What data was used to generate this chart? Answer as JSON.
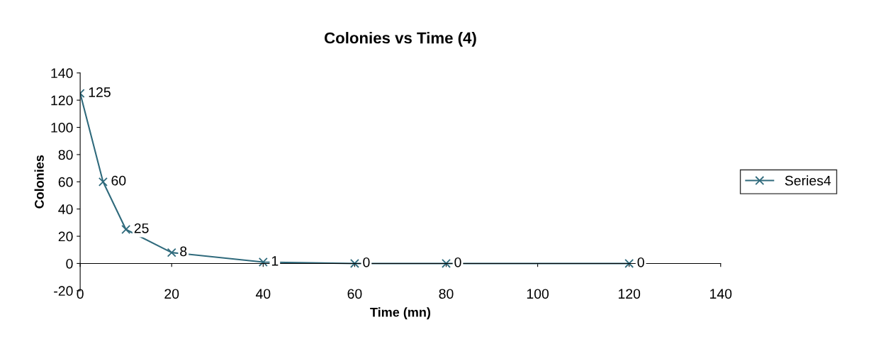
{
  "chart_data": {
    "type": "line",
    "title": "Colonies vs Time (4)",
    "xlabel": "Time (mn)",
    "ylabel": "Colonies",
    "x": [
      0,
      5,
      10,
      20,
      40,
      60,
      80,
      120
    ],
    "series": [
      {
        "name": "Series4",
        "color": "#2f6a7c",
        "values": [
          125,
          60,
          25,
          8,
          1,
          0,
          0,
          0
        ]
      }
    ],
    "xlim": [
      0,
      140
    ],
    "xticks": [
      0,
      20,
      40,
      60,
      80,
      100,
      120,
      140
    ],
    "ylim": [
      -20,
      140
    ],
    "yticks": [
      -20,
      0,
      20,
      40,
      60,
      80,
      100,
      120,
      140
    ],
    "grid": false,
    "legend": "right",
    "marker": "cross",
    "line_style": "solid",
    "data_labels": true
  }
}
